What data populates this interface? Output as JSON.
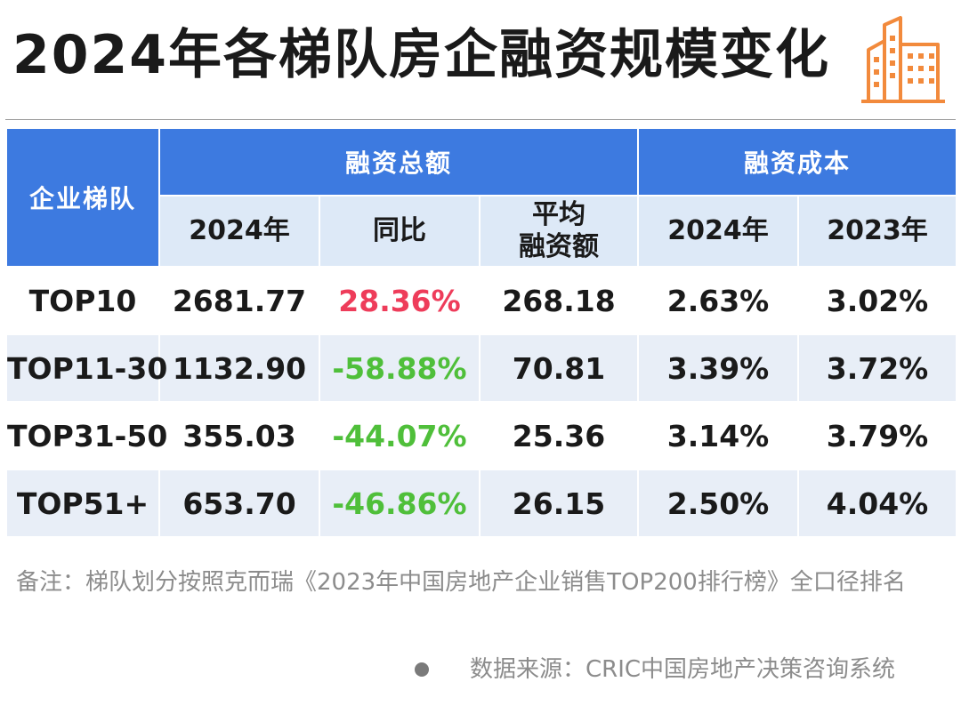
{
  "title": "2024年各梯队房企融资规模变化",
  "icons": {
    "header": "building-icon",
    "source_bullet": "dot-icon"
  },
  "colors": {
    "header_blue": "#3d7ae0",
    "subheader_blue": "#dde9f7",
    "row_shade": "#e8eef7",
    "positive_red": "#ee3c5a",
    "negative_green": "#4fbf3a",
    "icon_orange": "#f28a3c"
  },
  "table": {
    "tier_header": "企业梯队",
    "group_total": "融资总额",
    "group_cost": "融资成本",
    "col_total_2024": "2024年",
    "col_yoy": "同比",
    "col_avg_line1": "平均",
    "col_avg_line2": "融资额",
    "col_cost_2024": "2024年",
    "col_cost_2023": "2023年",
    "rows": [
      {
        "tier": "TOP10",
        "total": "2681.77",
        "yoy": "28.36%",
        "avg": "268.18",
        "cost2024": "2.63%",
        "cost2023": "3.02%"
      },
      {
        "tier": "TOP11-30",
        "total": "1132.90",
        "yoy": "-58.88%",
        "avg": "70.81",
        "cost2024": "3.39%",
        "cost2023": "3.72%"
      },
      {
        "tier": "TOP31-50",
        "total": "355.03",
        "yoy": "-44.07%",
        "avg": "25.36",
        "cost2024": "3.14%",
        "cost2023": "3.79%"
      },
      {
        "tier": "TOP51+",
        "total": "653.70",
        "yoy": "-46.86%",
        "avg": "26.15",
        "cost2024": "2.50%",
        "cost2023": "4.04%"
      }
    ]
  },
  "note": "备注：梯队划分按照克而瑞《2023年中国房地产企业销售TOP200排行榜》全口径排名",
  "source": "数据来源：CRIC中国房地产决策咨询系统"
}
